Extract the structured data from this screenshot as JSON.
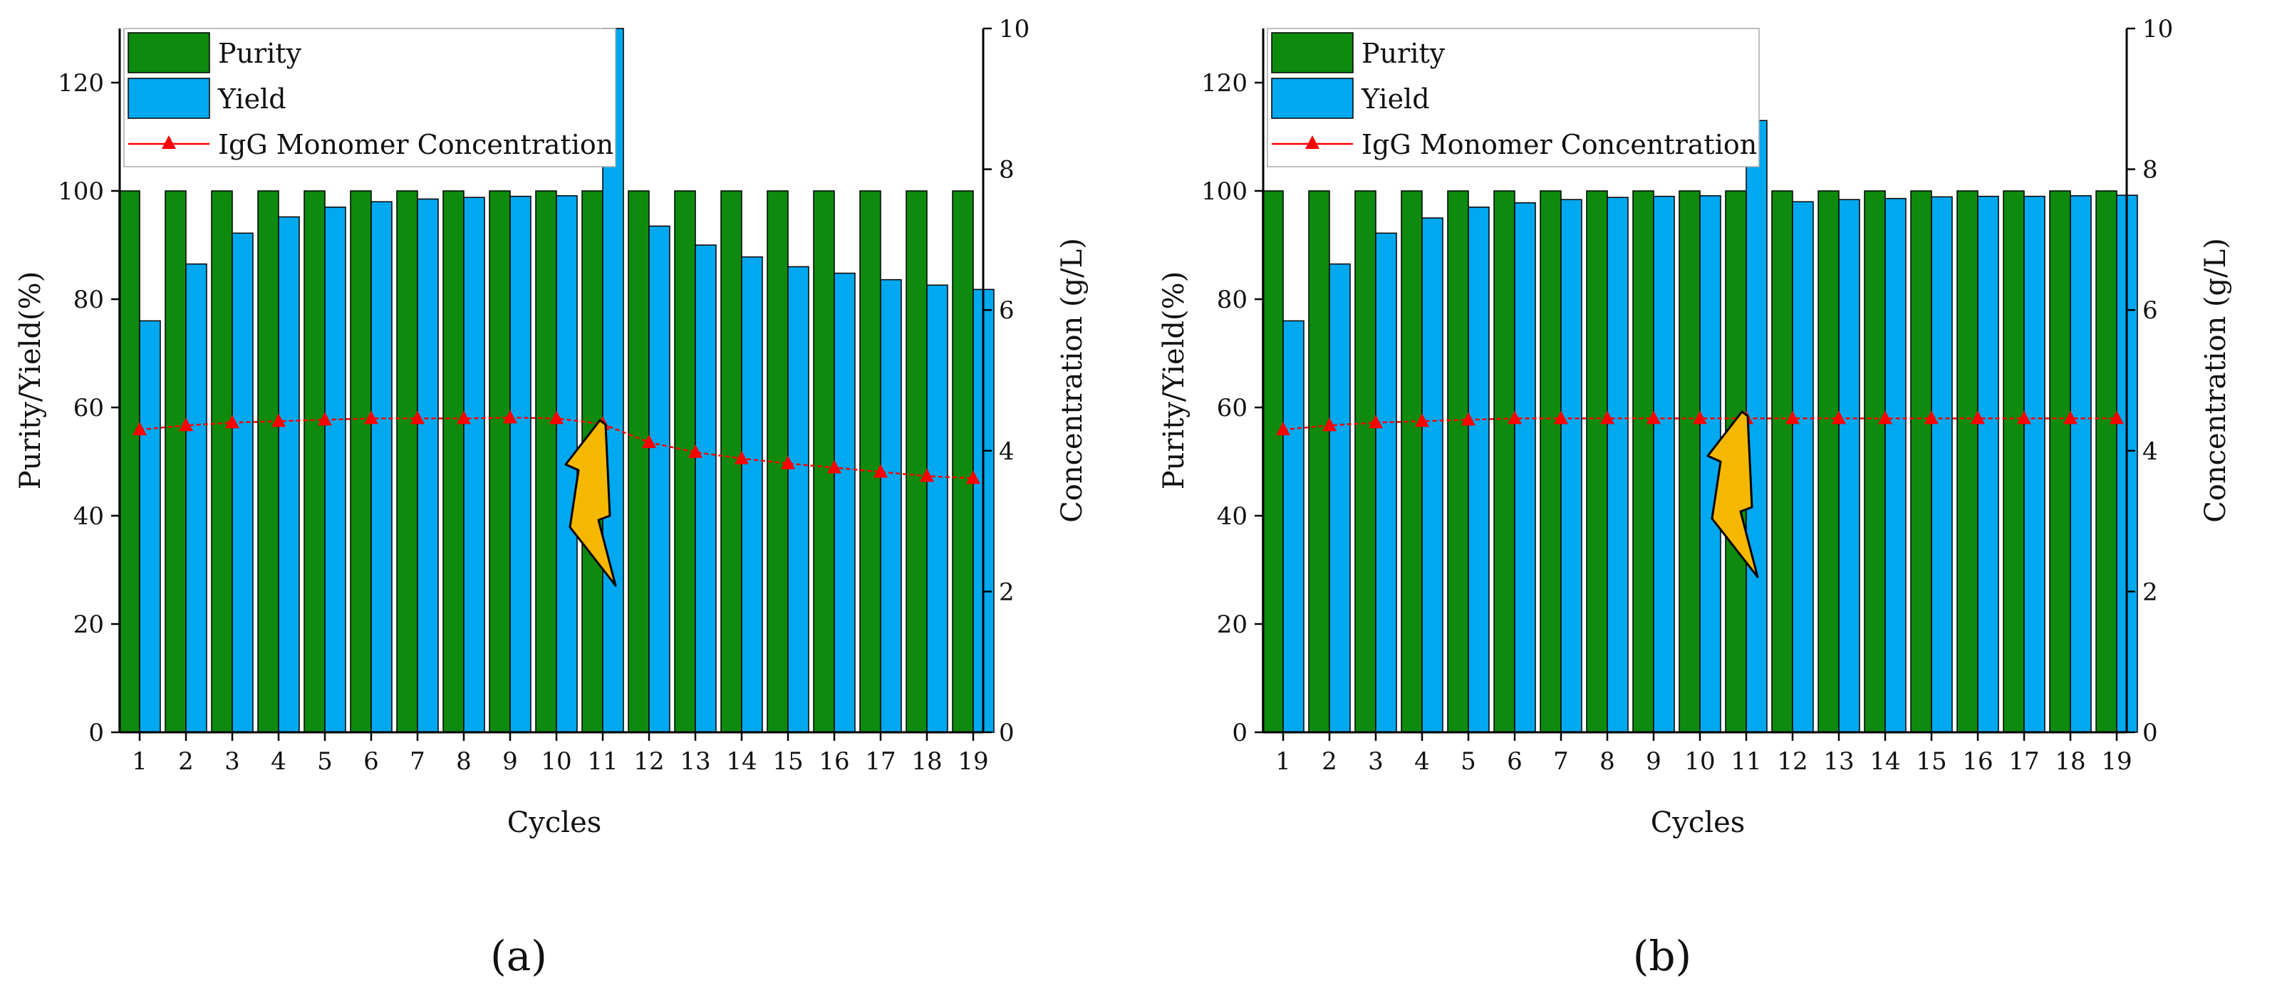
{
  "chart_data": [
    {
      "type": "bar",
      "panel_label": "(a)",
      "title": "",
      "categories": [
        "1",
        "2",
        "3",
        "4",
        "5",
        "6",
        "7",
        "8",
        "9",
        "10",
        "11",
        "12",
        "13",
        "14",
        "15",
        "16",
        "17",
        "18",
        "19"
      ],
      "series": [
        {
          "name": "Purity",
          "color": "#0e8a0e",
          "values": [
            100,
            100,
            100,
            100,
            100,
            100,
            100,
            100,
            100,
            100,
            100,
            100,
            100,
            100,
            100,
            100,
            100,
            100,
            100
          ]
        },
        {
          "name": "Yield",
          "color": "#00a8f0",
          "values": [
            76,
            86.5,
            92.2,
            95.2,
            97,
            98,
            98.5,
            98.8,
            99,
            99.1,
            130,
            93.5,
            90,
            87.8,
            86,
            84.8,
            83.6,
            82.6,
            81.8
          ]
        },
        {
          "name": "IgG Monomer Concentration",
          "color": "#ff0000",
          "axis": "right",
          "values": [
            4.3,
            4.36,
            4.4,
            4.42,
            4.44,
            4.46,
            4.46,
            4.46,
            4.47,
            4.46,
            4.38,
            4.12,
            3.98,
            3.89,
            3.82,
            3.76,
            3.7,
            3.64,
            3.61
          ]
        }
      ],
      "xlabel": "Cycles",
      "ylabel": "Purity/Yield(%)",
      "y2label": "Concentration (g/L)",
      "ylim": [
        0,
        130
      ],
      "y2lim": [
        0,
        10
      ],
      "yticks": [
        0,
        20,
        40,
        60,
        80,
        100,
        120
      ],
      "y2ticks": [
        0,
        2,
        4,
        6,
        8,
        10
      ],
      "legend": [
        "Purity",
        "Yield",
        "IgG Monomer Concentration"
      ],
      "annotation": "lightning-bolt-icon"
    },
    {
      "type": "bar",
      "panel_label": "(b)",
      "title": "",
      "categories": [
        "1",
        "2",
        "3",
        "4",
        "5",
        "6",
        "7",
        "8",
        "9",
        "10",
        "11",
        "12",
        "13",
        "14",
        "15",
        "16",
        "17",
        "18",
        "19"
      ],
      "series": [
        {
          "name": "Purity",
          "color": "#0e8a0e",
          "values": [
            100,
            100,
            100,
            100,
            100,
            100,
            100,
            100,
            100,
            100,
            100,
            100,
            100,
            100,
            100,
            100,
            100,
            100,
            100
          ]
        },
        {
          "name": "Yield",
          "color": "#00a8f0",
          "values": [
            76,
            86.5,
            92.2,
            95,
            97,
            97.8,
            98.4,
            98.8,
            99,
            99.1,
            113,
            98,
            98.4,
            98.6,
            98.9,
            99,
            99,
            99.1,
            99.2
          ]
        },
        {
          "name": "IgG Monomer Concentration",
          "color": "#ff0000",
          "axis": "right",
          "values": [
            4.3,
            4.36,
            4.4,
            4.42,
            4.44,
            4.46,
            4.46,
            4.46,
            4.46,
            4.46,
            4.46,
            4.46,
            4.46,
            4.46,
            4.46,
            4.46,
            4.46,
            4.46,
            4.46
          ]
        }
      ],
      "xlabel": "Cycles",
      "ylabel": "Purity/Yield(%)",
      "y2label": "Concentration (g/L)",
      "ylim": [
        0,
        130
      ],
      "y2lim": [
        0,
        10
      ],
      "yticks": [
        0,
        20,
        40,
        60,
        80,
        100,
        120
      ],
      "y2ticks": [
        0,
        2,
        4,
        6,
        8,
        10
      ],
      "legend": [
        "Purity",
        "Yield",
        "IgG Monomer Concentration"
      ],
      "annotation": "lightning-bolt-icon"
    }
  ]
}
